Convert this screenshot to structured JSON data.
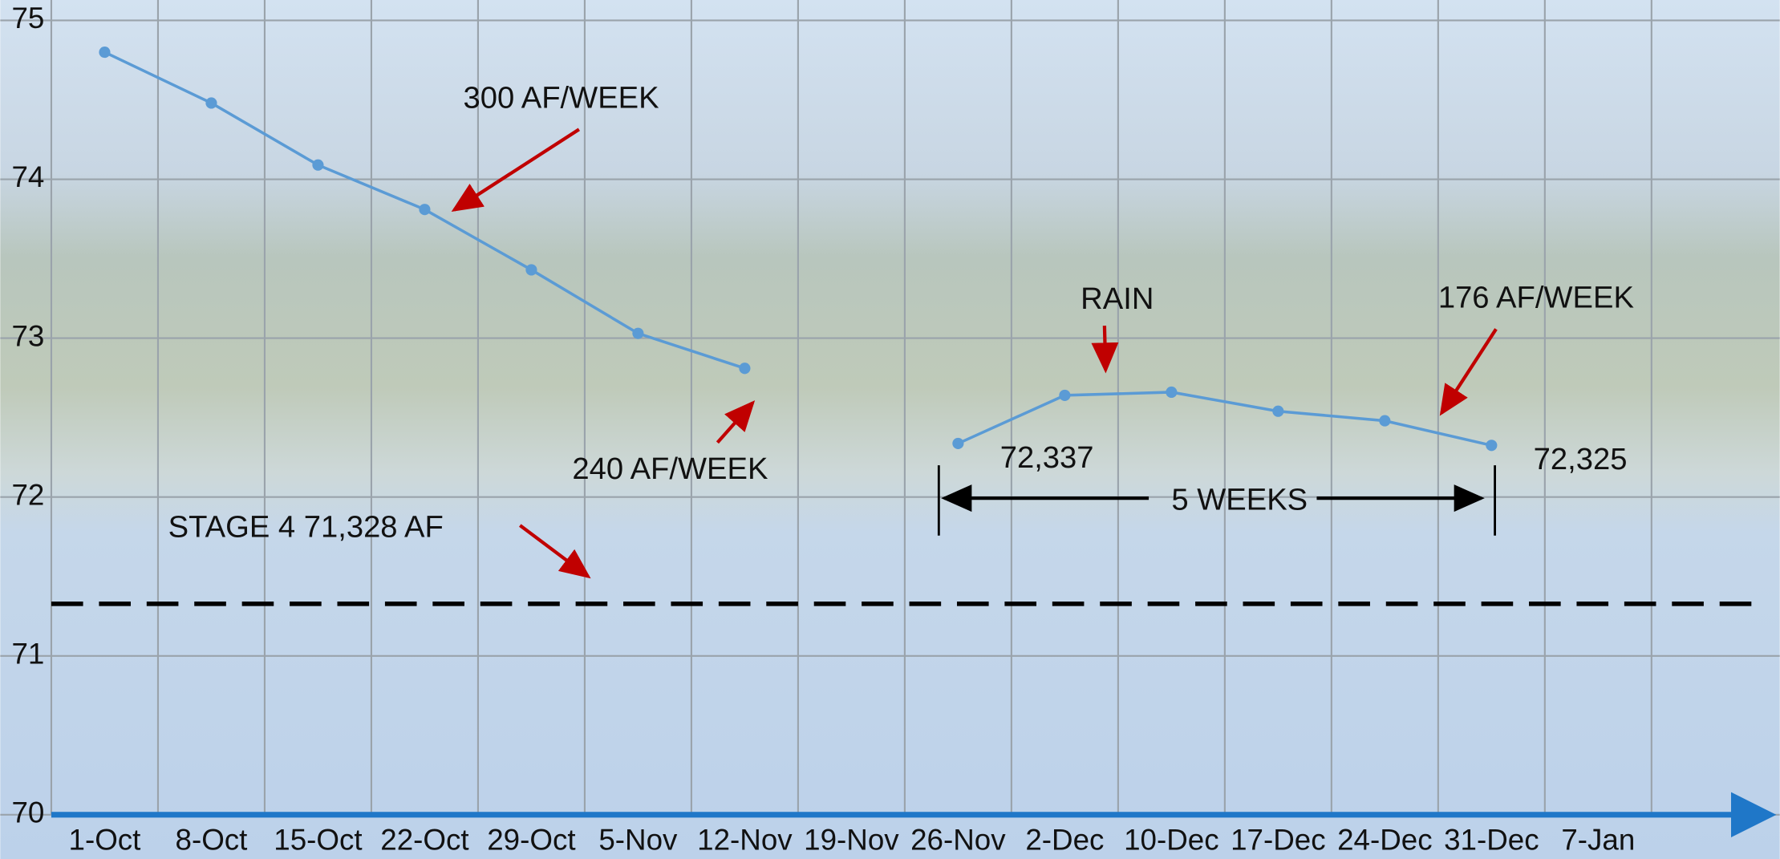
{
  "chart_data": {
    "type": "line",
    "categories": [
      "1-Oct",
      "8-Oct",
      "15-Oct",
      "22-Oct",
      "29-Oct",
      "5-Nov",
      "12-Nov",
      "19-Nov",
      "26-Nov",
      "2-Dec",
      "10-Dec",
      "17-Dec",
      "24-Dec",
      "31-Dec",
      "7-Jan"
    ],
    "series": [
      {
        "color": "#5b9bd5",
        "values": [
          74.8,
          74.48,
          74.09,
          73.81,
          73.43,
          73.03,
          72.81,
          null,
          72.337,
          72.64,
          72.66,
          72.54,
          72.48,
          72.325,
          null
        ],
        "value_labels": [
          null,
          null,
          null,
          null,
          null,
          null,
          null,
          null,
          "72,337",
          null,
          null,
          null,
          null,
          "72,325",
          null
        ]
      }
    ],
    "ylim": [
      70,
      75
    ],
    "yticks": [
      70,
      71,
      72,
      73,
      74,
      75
    ],
    "grid": true,
    "threshold": {
      "value": 71.328,
      "label": "STAGE 4  71,328 AF"
    },
    "annotations": [
      "300 AF/WEEK",
      "240 AF/WEEK",
      "RAIN",
      "176 AF/WEEK",
      "5 WEEKS"
    ]
  }
}
